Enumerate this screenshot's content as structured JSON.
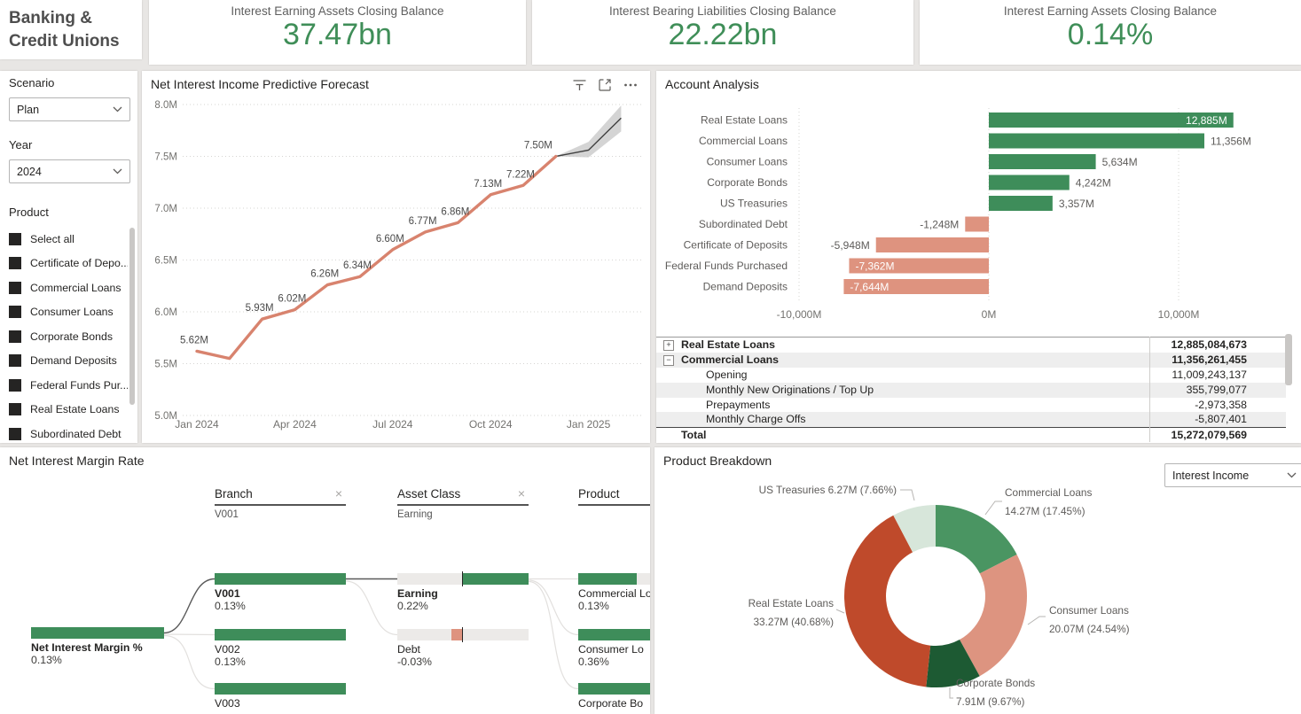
{
  "report": {
    "title": "Banking & Credit Unions"
  },
  "kpis": [
    {
      "label": "Interest Earning Assets Closing Balance",
      "value": "37.47bn"
    },
    {
      "label": "Interest Bearing Liabilities Closing Balance",
      "value": "22.22bn"
    },
    {
      "label": "Interest Earning Assets Closing Balance",
      "value": "0.14%"
    }
  ],
  "filters": {
    "scenario": {
      "label": "Scenario",
      "value": "Plan"
    },
    "year": {
      "label": "Year",
      "value": "2024"
    },
    "product": {
      "label": "Product",
      "items": [
        "Select all",
        "Certificate of Depo...",
        "Commercial Loans",
        "Consumer Loans",
        "Corporate Bonds",
        "Demand Deposits",
        "Federal Funds Pur...",
        "Real Estate Loans",
        "Subordinated Debt"
      ]
    }
  },
  "chart_data": [
    {
      "id": "forecast",
      "type": "line",
      "title": "Net Interest Income Predictive Forecast",
      "x": [
        "Jan 2024",
        "Feb 2024",
        "Mar 2024",
        "Apr 2024",
        "May 2024",
        "Jun 2024",
        "Jul 2024",
        "Aug 2024",
        "Sep 2024",
        "Oct 2024",
        "Nov 2024",
        "Dec 2024",
        "Jan 2025",
        "Feb 2025"
      ],
      "actual": [
        5.62,
        5.55,
        5.93,
        6.02,
        6.26,
        6.34,
        6.6,
        6.77,
        6.86,
        7.13,
        7.22,
        7.5
      ],
      "point_labels": [
        "5.62M",
        null,
        "5.93M",
        "6.02M",
        "6.26M",
        "6.34M",
        "6.60M",
        "6.77M",
        "6.86M",
        "7.13M",
        "7.22M",
        "7.50M"
      ],
      "forecast": [
        7.5,
        7.56,
        7.87
      ],
      "forecast_upper": [
        7.5,
        7.64,
        7.99
      ],
      "forecast_lower": [
        7.5,
        7.49,
        7.74
      ],
      "ylim": [
        5.0,
        8.0
      ],
      "y_ticks": [
        "8.0M",
        "7.5M",
        "7.0M",
        "6.5M",
        "6.0M",
        "5.5M",
        "5.0M"
      ],
      "x_ticks": [
        "Jan 2024",
        "Apr 2024",
        "Jul 2024",
        "Oct 2024",
        "Jan 2025"
      ],
      "x_tick_idx": [
        0,
        3,
        6,
        9,
        12
      ],
      "line_color": "#d8836e",
      "forecast_color": "#404040",
      "band_color": "#c9c9c9"
    },
    {
      "id": "account_analysis",
      "type": "bar",
      "title": "Account Analysis",
      "categories": [
        "Real Estate Loans",
        "Commercial Loans",
        "Consumer Loans",
        "Corporate Bonds",
        "US Treasuries",
        "Subordinated Debt",
        "Certificate of Deposits",
        "Federal Funds Purchased",
        "Demand Deposits"
      ],
      "values": [
        12885,
        11356,
        5634,
        4242,
        3357,
        -1248,
        -5948,
        -7362,
        -7644
      ],
      "value_labels": [
        "12,885M",
        "11,356M",
        "5,634M",
        "4,242M",
        "3,357M",
        "-1,248M",
        "-5,948M",
        "-7,362M",
        "-7,644M"
      ],
      "label_inside": [
        true,
        false,
        false,
        false,
        false,
        false,
        false,
        true,
        true
      ],
      "x_ticks": [
        "-10,000M",
        "0M",
        "10,000M"
      ],
      "x_tick_values": [
        -10000,
        0,
        10000
      ],
      "unit": "M",
      "pos_color": "#3e8d5a",
      "neg_color": "#de937f"
    },
    {
      "id": "product_breakdown",
      "type": "pie",
      "title": "Product Breakdown",
      "slices": [
        {
          "label": "Commercial Loans",
          "value": 14.27,
          "pct": 17.45,
          "value_label": "14.27M (17.45%)",
          "color": "#4a9562"
        },
        {
          "label": "Consumer Loans",
          "value": 20.07,
          "pct": 24.54,
          "value_label": "20.07M (24.54%)",
          "color": "#dd9480"
        },
        {
          "label": "Corporate Bonds",
          "value": 7.91,
          "pct": 9.67,
          "value_label": "7.91M (9.67%)",
          "color": "#1d5a33"
        },
        {
          "label": "Real Estate Loans",
          "value": 33.27,
          "pct": 40.68,
          "value_label": "33.27M (40.68%)",
          "color": "#bf4a2b"
        },
        {
          "label": "US Treasuries",
          "value": 6.27,
          "pct": 7.66,
          "value_label": "6.27M (7.66%)",
          "color": "#d7e6da"
        }
      ]
    }
  ],
  "account_analysis_table": {
    "rows": [
      {
        "icon": "+",
        "label": "Real Estate Loans",
        "value": "12,885,084,673",
        "bold": true,
        "indent": 0,
        "shaded": false,
        "total": false
      },
      {
        "icon": "-",
        "label": "Commercial Loans",
        "value": "11,356,261,455",
        "bold": true,
        "indent": 0,
        "shaded": true,
        "total": false
      },
      {
        "icon": "",
        "label": "Opening",
        "value": "11,009,243,137",
        "bold": false,
        "indent": 1,
        "shaded": false,
        "total": false
      },
      {
        "icon": "",
        "label": "Monthly New Originations / Top Up",
        "value": "355,799,077",
        "bold": false,
        "indent": 1,
        "shaded": true,
        "total": false
      },
      {
        "icon": "",
        "label": "Prepayments",
        "value": "-2,973,358",
        "bold": false,
        "indent": 1,
        "shaded": false,
        "total": false
      },
      {
        "icon": "",
        "label": "Monthly Charge Offs",
        "value": "-5,807,401",
        "bold": false,
        "indent": 1,
        "shaded": true,
        "total": false
      },
      {
        "icon": "",
        "label": "Total",
        "value": "15,272,079,569",
        "bold": true,
        "indent": 0,
        "shaded": false,
        "total": true
      }
    ]
  },
  "nim_tree": {
    "title": "Net Interest Margin Rate",
    "levels": [
      {
        "label": "Branch",
        "selected": "V001",
        "close_icon": "×"
      },
      {
        "label": "Asset Class",
        "selected": "Earning",
        "close_icon": "×"
      },
      {
        "label": "Product",
        "selected": "",
        "close_icon": ""
      }
    ],
    "root": {
      "label": "Net Interest Margin %",
      "value": "0.13%"
    },
    "branch_nodes": [
      {
        "label": "V001",
        "value": "0.13%"
      },
      {
        "label": "V002",
        "value": "0.13%"
      },
      {
        "label": "V003",
        "value": ""
      }
    ],
    "asset_nodes": [
      {
        "label": "Earning",
        "value": "0.22%"
      },
      {
        "label": "Debt",
        "value": "-0.03%"
      }
    ],
    "product_nodes": [
      {
        "label": "Commercial Lo",
        "value": "0.13%"
      },
      {
        "label": "Consumer Lo",
        "value": "0.36%"
      },
      {
        "label": "Corporate Bo",
        "value": ""
      }
    ],
    "colors": {
      "green": "#3e8d5a",
      "salmon": "#de937f",
      "gray": "#eceae8",
      "marker": "#252423",
      "link": "#e2e0de",
      "link_selected": "#5a5a5a"
    }
  },
  "product_breakdown": {
    "dropdown": "Interest Income"
  }
}
